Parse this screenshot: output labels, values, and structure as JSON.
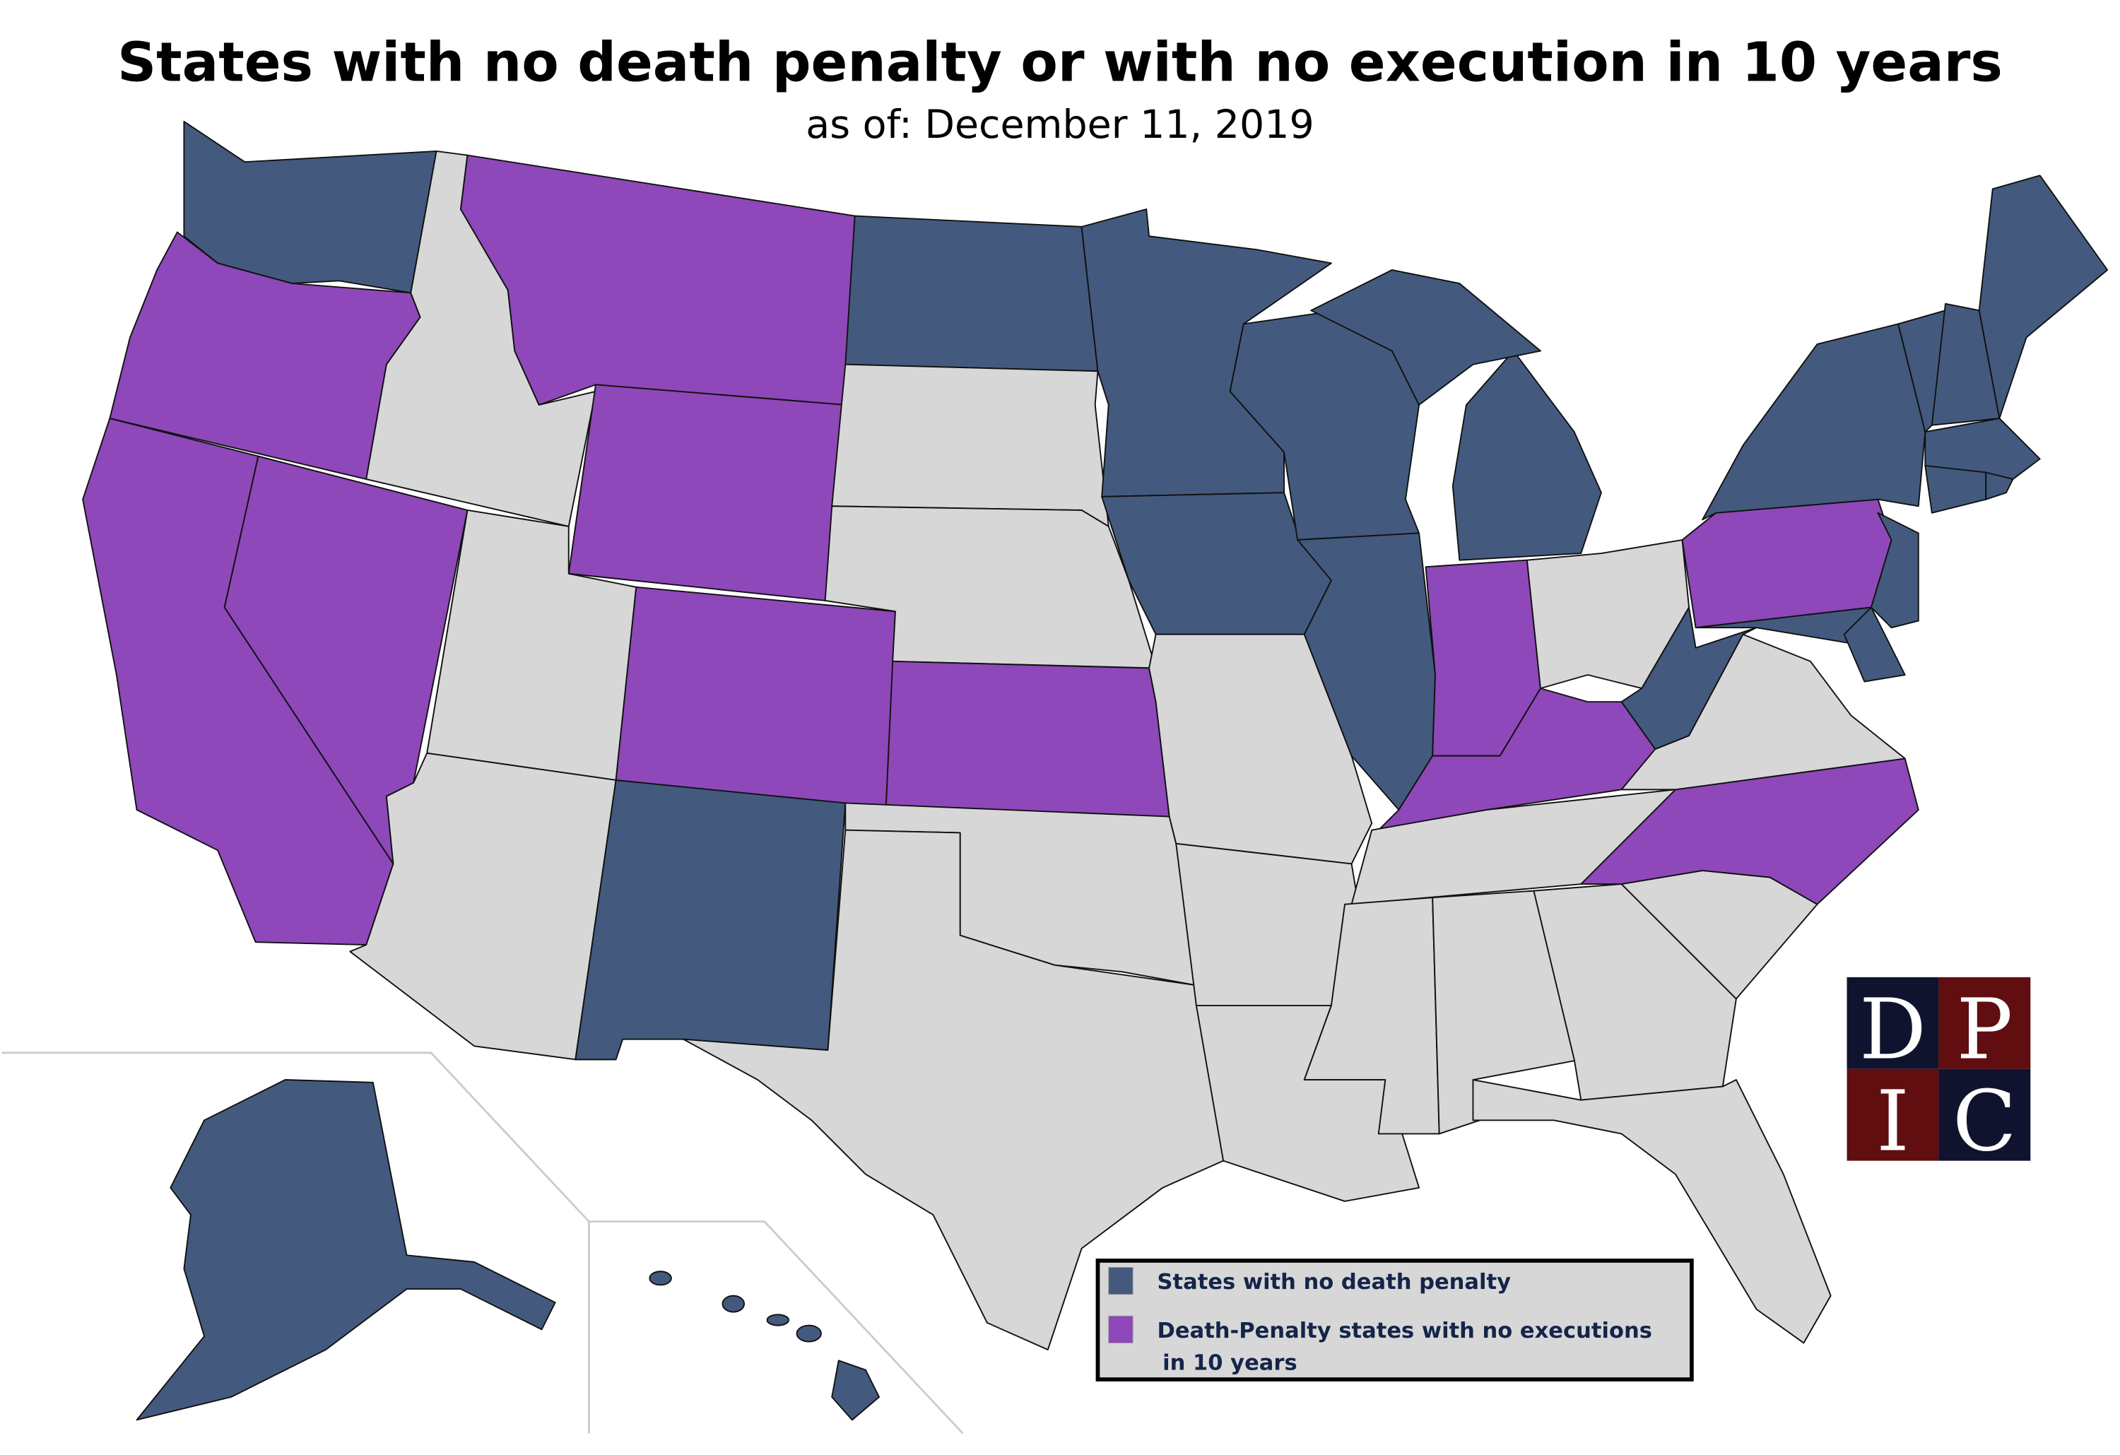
{
  "title": "States with no death penalty or with no execution in 10 years",
  "subtitle": "as of: December 11, 2019",
  "colors": {
    "no_death_penalty": "#435a7e",
    "no_executions_10y": "#8e48b9",
    "other": "#d7d7d7",
    "logo_navy": "#10132e",
    "logo_red": "#600e10"
  },
  "legend": {
    "items": [
      {
        "key": "no_death_penalty",
        "label": "States with no death penalty"
      },
      {
        "key": "no_executions_10y",
        "label_line1": "Death-Penalty states with no executions",
        "label_line2": "in 10 years"
      }
    ]
  },
  "logo": {
    "letters": [
      "D",
      "P",
      "I",
      "C"
    ]
  },
  "states": {
    "WA": "no_death_penalty",
    "OR": "no_executions_10y",
    "CA": "no_executions_10y",
    "NV": "no_executions_10y",
    "ID": "other",
    "MT": "no_executions_10y",
    "WY": "no_executions_10y",
    "UT": "other",
    "AZ": "other",
    "CO": "no_executions_10y",
    "NM": "no_death_penalty",
    "ND": "no_death_penalty",
    "SD": "other",
    "NE": "other",
    "KS": "no_executions_10y",
    "OK": "other",
    "TX": "other",
    "MN": "no_death_penalty",
    "IA": "no_death_penalty",
    "MO": "other",
    "AR": "other",
    "LA": "other",
    "WI": "no_death_penalty",
    "IL": "no_death_penalty",
    "MI": "no_death_penalty",
    "IN": "no_executions_10y",
    "OH": "other",
    "KY": "no_executions_10y",
    "TN": "other",
    "MS": "other",
    "AL": "other",
    "GA": "other",
    "FL": "other",
    "SC": "other",
    "NC": "no_executions_10y",
    "VA": "other",
    "WV": "no_death_penalty",
    "PA": "no_executions_10y",
    "NY": "no_death_penalty",
    "NJ": "no_death_penalty",
    "MD": "no_death_penalty",
    "DE": "no_death_penalty",
    "VT": "no_death_penalty",
    "NH": "no_death_penalty",
    "ME": "no_death_penalty",
    "MA": "no_death_penalty",
    "CT": "no_death_penalty",
    "RI": "no_death_penalty",
    "AK": "no_death_penalty",
    "HI": "no_death_penalty"
  }
}
